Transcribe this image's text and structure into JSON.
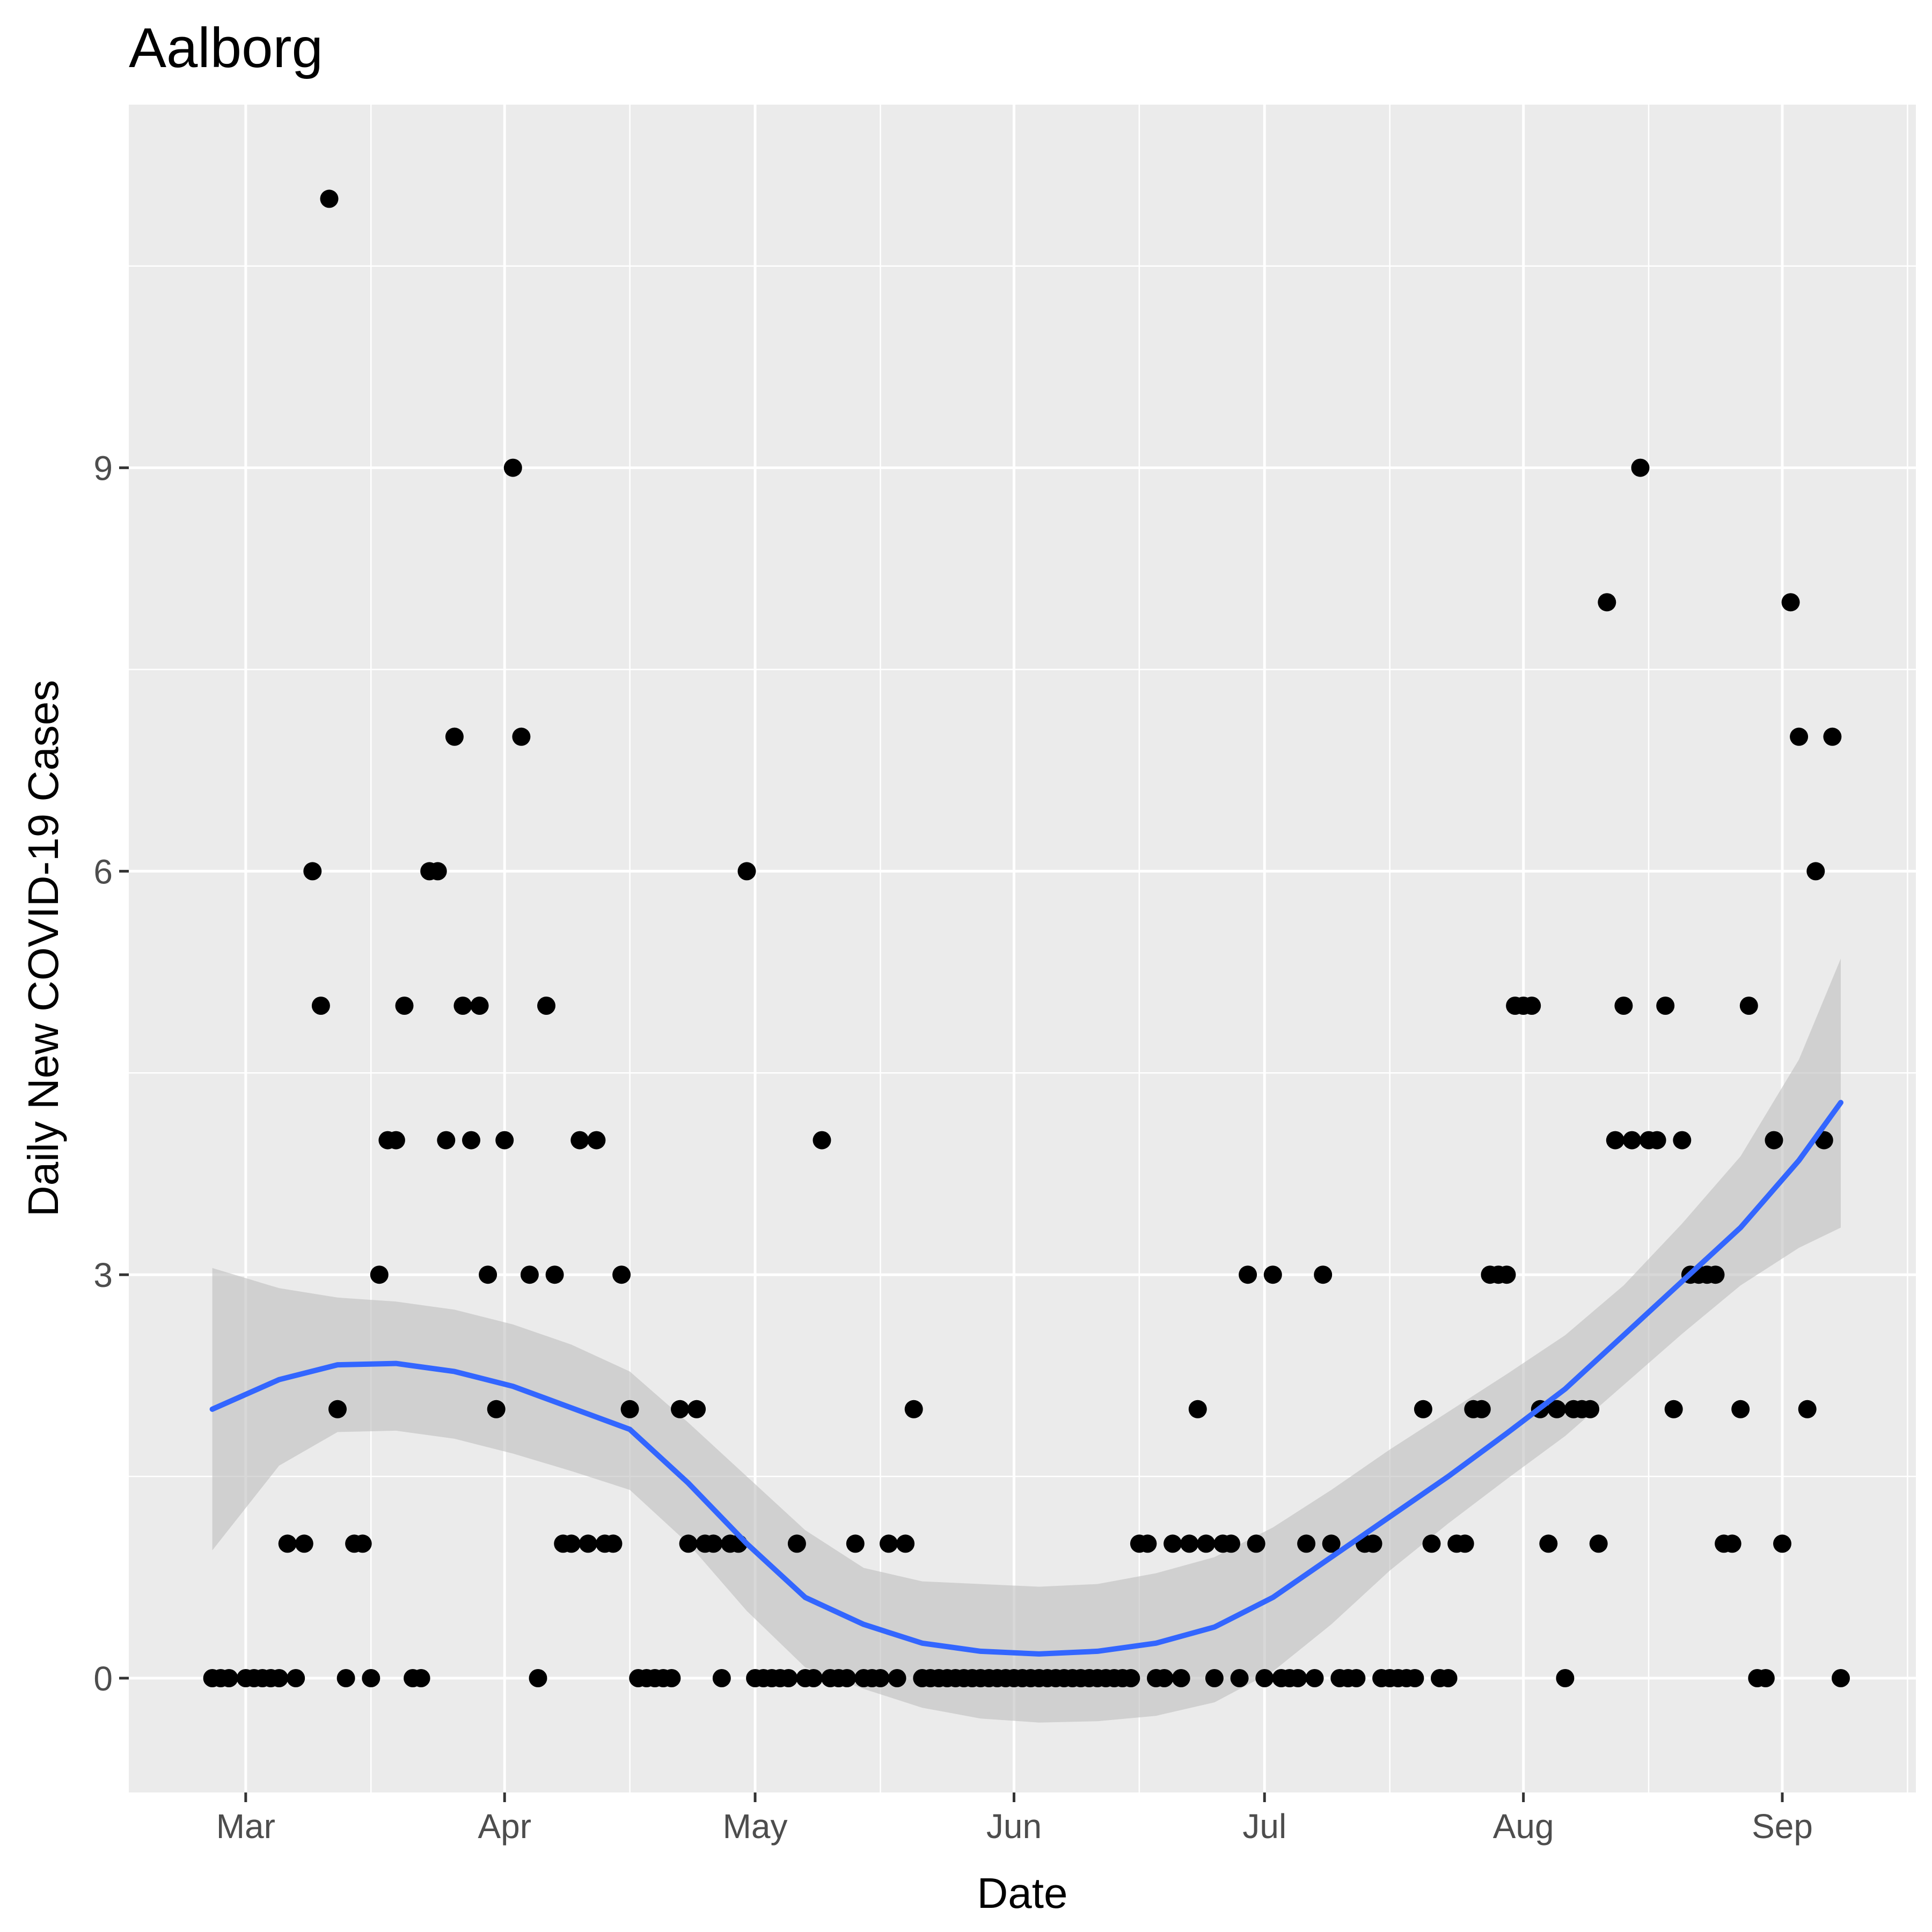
{
  "chart_data": {
    "type": "scatter",
    "title": "Aalborg",
    "xlabel": "Date",
    "ylabel": "Daily New COVID-19 Cases",
    "x_ticks": [
      {
        "date": "2020-03-01",
        "label": "Mar"
      },
      {
        "date": "2020-04-01",
        "label": "Apr"
      },
      {
        "date": "2020-05-01",
        "label": "May"
      },
      {
        "date": "2020-06-01",
        "label": "Jun"
      },
      {
        "date": "2020-07-01",
        "label": "Jul"
      },
      {
        "date": "2020-08-01",
        "label": "Aug"
      },
      {
        "date": "2020-09-01",
        "label": "Sep"
      }
    ],
    "y_ticks": [
      0,
      3,
      6,
      9
    ],
    "xlim": [
      "2020-02-16",
      "2020-09-17"
    ],
    "ylim": [
      -0.85,
      11.7
    ],
    "grid": true,
    "colors": {
      "panel": "#ebebeb",
      "grid_major": "#ffffff",
      "points": "#000000",
      "smooth_line": "#3366ff",
      "ribbon": "#bebebe"
    },
    "series": [
      {
        "values": [
          [
            "2020-02-26",
            0
          ],
          [
            "2020-02-27",
            0
          ],
          [
            "2020-02-28",
            0
          ],
          [
            "2020-03-01",
            0
          ],
          [
            "2020-03-02",
            0
          ],
          [
            "2020-03-03",
            0
          ],
          [
            "2020-03-04",
            0
          ],
          [
            "2020-03-05",
            0
          ],
          [
            "2020-03-06",
            1
          ],
          [
            "2020-03-07",
            0
          ],
          [
            "2020-03-08",
            1
          ],
          [
            "2020-03-09",
            6
          ],
          [
            "2020-03-10",
            5
          ],
          [
            "2020-03-11",
            11
          ],
          [
            "2020-03-12",
            2
          ],
          [
            "2020-03-13",
            0
          ],
          [
            "2020-03-14",
            1
          ],
          [
            "2020-03-15",
            1
          ],
          [
            "2020-03-16",
            0
          ],
          [
            "2020-03-17",
            3
          ],
          [
            "2020-03-18",
            4
          ],
          [
            "2020-03-19",
            4
          ],
          [
            "2020-03-20",
            5
          ],
          [
            "2020-03-21",
            0
          ],
          [
            "2020-03-22",
            0
          ],
          [
            "2020-03-23",
            6
          ],
          [
            "2020-03-24",
            6
          ],
          [
            "2020-03-25",
            4
          ],
          [
            "2020-03-26",
            7
          ],
          [
            "2020-03-27",
            5
          ],
          [
            "2020-03-28",
            4
          ],
          [
            "2020-03-29",
            5
          ],
          [
            "2020-03-30",
            3
          ],
          [
            "2020-03-31",
            2
          ],
          [
            "2020-04-01",
            4
          ],
          [
            "2020-04-02",
            9
          ],
          [
            "2020-04-03",
            7
          ],
          [
            "2020-04-04",
            3
          ],
          [
            "2020-04-05",
            0
          ],
          [
            "2020-04-06",
            5
          ],
          [
            "2020-04-07",
            3
          ],
          [
            "2020-04-08",
            1
          ],
          [
            "2020-04-09",
            1
          ],
          [
            "2020-04-10",
            4
          ],
          [
            "2020-04-11",
            1
          ],
          [
            "2020-04-12",
            4
          ],
          [
            "2020-04-13",
            1
          ],
          [
            "2020-04-14",
            1
          ],
          [
            "2020-04-15",
            3
          ],
          [
            "2020-04-16",
            2
          ],
          [
            "2020-04-17",
            0
          ],
          [
            "2020-04-18",
            0
          ],
          [
            "2020-04-19",
            0
          ],
          [
            "2020-04-20",
            0
          ],
          [
            "2020-04-21",
            0
          ],
          [
            "2020-04-22",
            2
          ],
          [
            "2020-04-23",
            1
          ],
          [
            "2020-04-24",
            2
          ],
          [
            "2020-04-25",
            1
          ],
          [
            "2020-04-26",
            1
          ],
          [
            "2020-04-27",
            0
          ],
          [
            "2020-04-28",
            1
          ],
          [
            "2020-04-29",
            1
          ],
          [
            "2020-04-30",
            6
          ],
          [
            "2020-05-01",
            0
          ],
          [
            "2020-05-02",
            0
          ],
          [
            "2020-05-03",
            0
          ],
          [
            "2020-05-04",
            0
          ],
          [
            "2020-05-05",
            0
          ],
          [
            "2020-05-06",
            1
          ],
          [
            "2020-05-07",
            0
          ],
          [
            "2020-05-08",
            0
          ],
          [
            "2020-05-09",
            4
          ],
          [
            "2020-05-10",
            0
          ],
          [
            "2020-05-11",
            0
          ],
          [
            "2020-05-12",
            0
          ],
          [
            "2020-05-13",
            1
          ],
          [
            "2020-05-14",
            0
          ],
          [
            "2020-05-15",
            0
          ],
          [
            "2020-05-16",
            0
          ],
          [
            "2020-05-17",
            1
          ],
          [
            "2020-05-18",
            0
          ],
          [
            "2020-05-19",
            1
          ],
          [
            "2020-05-20",
            2
          ],
          [
            "2020-05-21",
            0
          ],
          [
            "2020-05-22",
            0
          ],
          [
            "2020-05-23",
            0
          ],
          [
            "2020-05-24",
            0
          ],
          [
            "2020-05-25",
            0
          ],
          [
            "2020-05-26",
            0
          ],
          [
            "2020-05-27",
            0
          ],
          [
            "2020-05-28",
            0
          ],
          [
            "2020-05-29",
            0
          ],
          [
            "2020-05-30",
            0
          ],
          [
            "2020-05-31",
            0
          ],
          [
            "2020-06-01",
            0
          ],
          [
            "2020-06-02",
            0
          ],
          [
            "2020-06-03",
            0
          ],
          [
            "2020-06-04",
            0
          ],
          [
            "2020-06-05",
            0
          ],
          [
            "2020-06-06",
            0
          ],
          [
            "2020-06-07",
            0
          ],
          [
            "2020-06-08",
            0
          ],
          [
            "2020-06-09",
            0
          ],
          [
            "2020-06-10",
            0
          ],
          [
            "2020-06-11",
            0
          ],
          [
            "2020-06-12",
            0
          ],
          [
            "2020-06-13",
            0
          ],
          [
            "2020-06-14",
            0
          ],
          [
            "2020-06-15",
            0
          ],
          [
            "2020-06-16",
            1
          ],
          [
            "2020-06-17",
            1
          ],
          [
            "2020-06-18",
            0
          ],
          [
            "2020-06-19",
            0
          ],
          [
            "2020-06-20",
            1
          ],
          [
            "2020-06-21",
            0
          ],
          [
            "2020-06-22",
            1
          ],
          [
            "2020-06-23",
            2
          ],
          [
            "2020-06-24",
            1
          ],
          [
            "2020-06-25",
            0
          ],
          [
            "2020-06-26",
            1
          ],
          [
            "2020-06-27",
            1
          ],
          [
            "2020-06-28",
            0
          ],
          [
            "2020-06-29",
            3
          ],
          [
            "2020-06-30",
            1
          ],
          [
            "2020-07-01",
            0
          ],
          [
            "2020-07-02",
            3
          ],
          [
            "2020-07-03",
            0
          ],
          [
            "2020-07-04",
            0
          ],
          [
            "2020-07-05",
            0
          ],
          [
            "2020-07-06",
            1
          ],
          [
            "2020-07-07",
            0
          ],
          [
            "2020-07-08",
            3
          ],
          [
            "2020-07-09",
            1
          ],
          [
            "2020-07-10",
            0
          ],
          [
            "2020-07-11",
            0
          ],
          [
            "2020-07-12",
            0
          ],
          [
            "2020-07-13",
            1
          ],
          [
            "2020-07-14",
            1
          ],
          [
            "2020-07-15",
            0
          ],
          [
            "2020-07-16",
            0
          ],
          [
            "2020-07-17",
            0
          ],
          [
            "2020-07-18",
            0
          ],
          [
            "2020-07-19",
            0
          ],
          [
            "2020-07-20",
            2
          ],
          [
            "2020-07-21",
            1
          ],
          [
            "2020-07-22",
            0
          ],
          [
            "2020-07-23",
            0
          ],
          [
            "2020-07-24",
            1
          ],
          [
            "2020-07-25",
            1
          ],
          [
            "2020-07-26",
            2
          ],
          [
            "2020-07-27",
            2
          ],
          [
            "2020-07-28",
            3
          ],
          [
            "2020-07-29",
            3
          ],
          [
            "2020-07-30",
            3
          ],
          [
            "2020-07-31",
            5
          ],
          [
            "2020-08-01",
            5
          ],
          [
            "2020-08-02",
            5
          ],
          [
            "2020-08-03",
            2
          ],
          [
            "2020-08-04",
            1
          ],
          [
            "2020-08-05",
            2
          ],
          [
            "2020-08-06",
            0
          ],
          [
            "2020-08-07",
            2
          ],
          [
            "2020-08-08",
            2
          ],
          [
            "2020-08-09",
            2
          ],
          [
            "2020-08-10",
            1
          ],
          [
            "2020-08-11",
            8
          ],
          [
            "2020-08-12",
            4
          ],
          [
            "2020-08-13",
            5
          ],
          [
            "2020-08-14",
            4
          ],
          [
            "2020-08-15",
            9
          ],
          [
            "2020-08-16",
            4
          ],
          [
            "2020-08-17",
            4
          ],
          [
            "2020-08-18",
            5
          ],
          [
            "2020-08-19",
            2
          ],
          [
            "2020-08-20",
            4
          ],
          [
            "2020-08-21",
            3
          ],
          [
            "2020-08-22",
            3
          ],
          [
            "2020-08-23",
            3
          ],
          [
            "2020-08-24",
            3
          ],
          [
            "2020-08-25",
            1
          ],
          [
            "2020-08-26",
            1
          ],
          [
            "2020-08-27",
            2
          ],
          [
            "2020-08-28",
            5
          ],
          [
            "2020-08-29",
            0
          ],
          [
            "2020-08-30",
            0
          ],
          [
            "2020-08-31",
            4
          ],
          [
            "2020-09-01",
            1
          ],
          [
            "2020-09-02",
            8
          ],
          [
            "2020-09-03",
            7
          ],
          [
            "2020-09-04",
            2
          ],
          [
            "2020-09-05",
            6
          ],
          [
            "2020-09-06",
            4
          ],
          [
            "2020-09-07",
            7
          ],
          [
            "2020-09-08",
            0
          ]
        ]
      }
    ],
    "smooth": {
      "x": [
        "2020-02-26",
        "2020-03-05",
        "2020-03-12",
        "2020-03-19",
        "2020-03-26",
        "2020-04-02",
        "2020-04-09",
        "2020-04-16",
        "2020-04-23",
        "2020-04-30",
        "2020-05-07",
        "2020-05-14",
        "2020-05-21",
        "2020-05-28",
        "2020-06-04",
        "2020-06-11",
        "2020-06-18",
        "2020-06-25",
        "2020-07-02",
        "2020-07-09",
        "2020-07-16",
        "2020-07-23",
        "2020-07-30",
        "2020-08-06",
        "2020-08-13",
        "2020-08-20",
        "2020-08-27",
        "2020-09-03",
        "2020-09-08"
      ],
      "y": [
        2.0,
        2.22,
        2.33,
        2.34,
        2.28,
        2.17,
        2.01,
        1.85,
        1.45,
        1.0,
        0.6,
        0.4,
        0.26,
        0.2,
        0.18,
        0.2,
        0.26,
        0.38,
        0.6,
        0.9,
        1.2,
        1.5,
        1.82,
        2.15,
        2.55,
        2.95,
        3.35,
        3.85,
        4.28
      ],
      "lower": [
        0.95,
        1.58,
        1.83,
        1.84,
        1.78,
        1.67,
        1.54,
        1.4,
        1.0,
        0.5,
        0.08,
        -0.08,
        -0.22,
        -0.3,
        -0.33,
        -0.32,
        -0.28,
        -0.18,
        0.05,
        0.4,
        0.8,
        1.15,
        1.48,
        1.8,
        2.18,
        2.56,
        2.92,
        3.2,
        3.35
      ],
      "upper": [
        3.05,
        2.9,
        2.83,
        2.8,
        2.74,
        2.63,
        2.48,
        2.28,
        1.9,
        1.5,
        1.1,
        0.82,
        0.72,
        0.7,
        0.68,
        0.7,
        0.78,
        0.9,
        1.12,
        1.4,
        1.7,
        1.98,
        2.26,
        2.55,
        2.92,
        3.38,
        3.88,
        4.6,
        5.35
      ]
    }
  }
}
